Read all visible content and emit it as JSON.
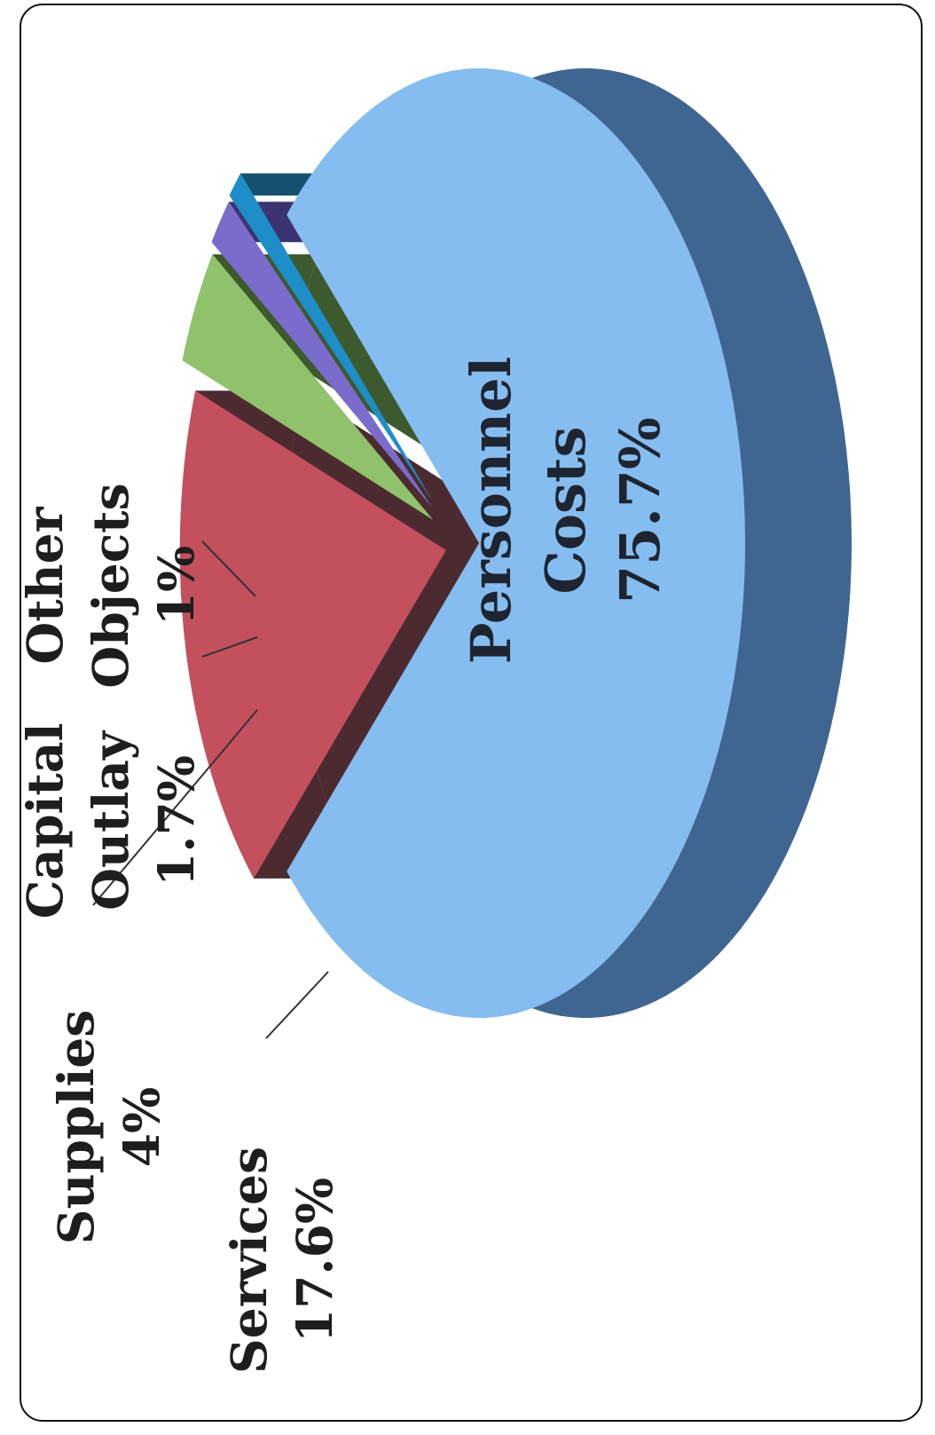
{
  "chart_data": {
    "type": "pie",
    "title": "",
    "slices": [
      {
        "category": "Personnel Costs",
        "value": 75.7,
        "label_lines": [
          "Personnel",
          "Costs",
          "75.7%"
        ],
        "color": "#86bdf0",
        "side_color": "#3f6690"
      },
      {
        "category": "Services",
        "value": 17.6,
        "label_lines": [
          "Services",
          "17.6%"
        ],
        "color": "#c4505e",
        "side_color": "#4c2b30"
      },
      {
        "category": "Supplies",
        "value": 4,
        "label_lines": [
          "Supplies",
          "4%"
        ],
        "color": "#8fc26a",
        "side_color": "#3d5a2e"
      },
      {
        "category": "Capital Outlay",
        "value": 1.7,
        "label_lines": [
          "Capital",
          "Outlay",
          "1.7%"
        ],
        "color": "#7a6ccc",
        "side_color": "#3b3470"
      },
      {
        "category": "Other Objects",
        "value": 1,
        "label_lines": [
          "Other",
          "Objects",
          "1%"
        ],
        "color": "#1e8ec8",
        "side_color": "#15506f"
      }
    ],
    "orientation": "rotated 90° counter-clockwise",
    "style": "3d-exploded"
  }
}
